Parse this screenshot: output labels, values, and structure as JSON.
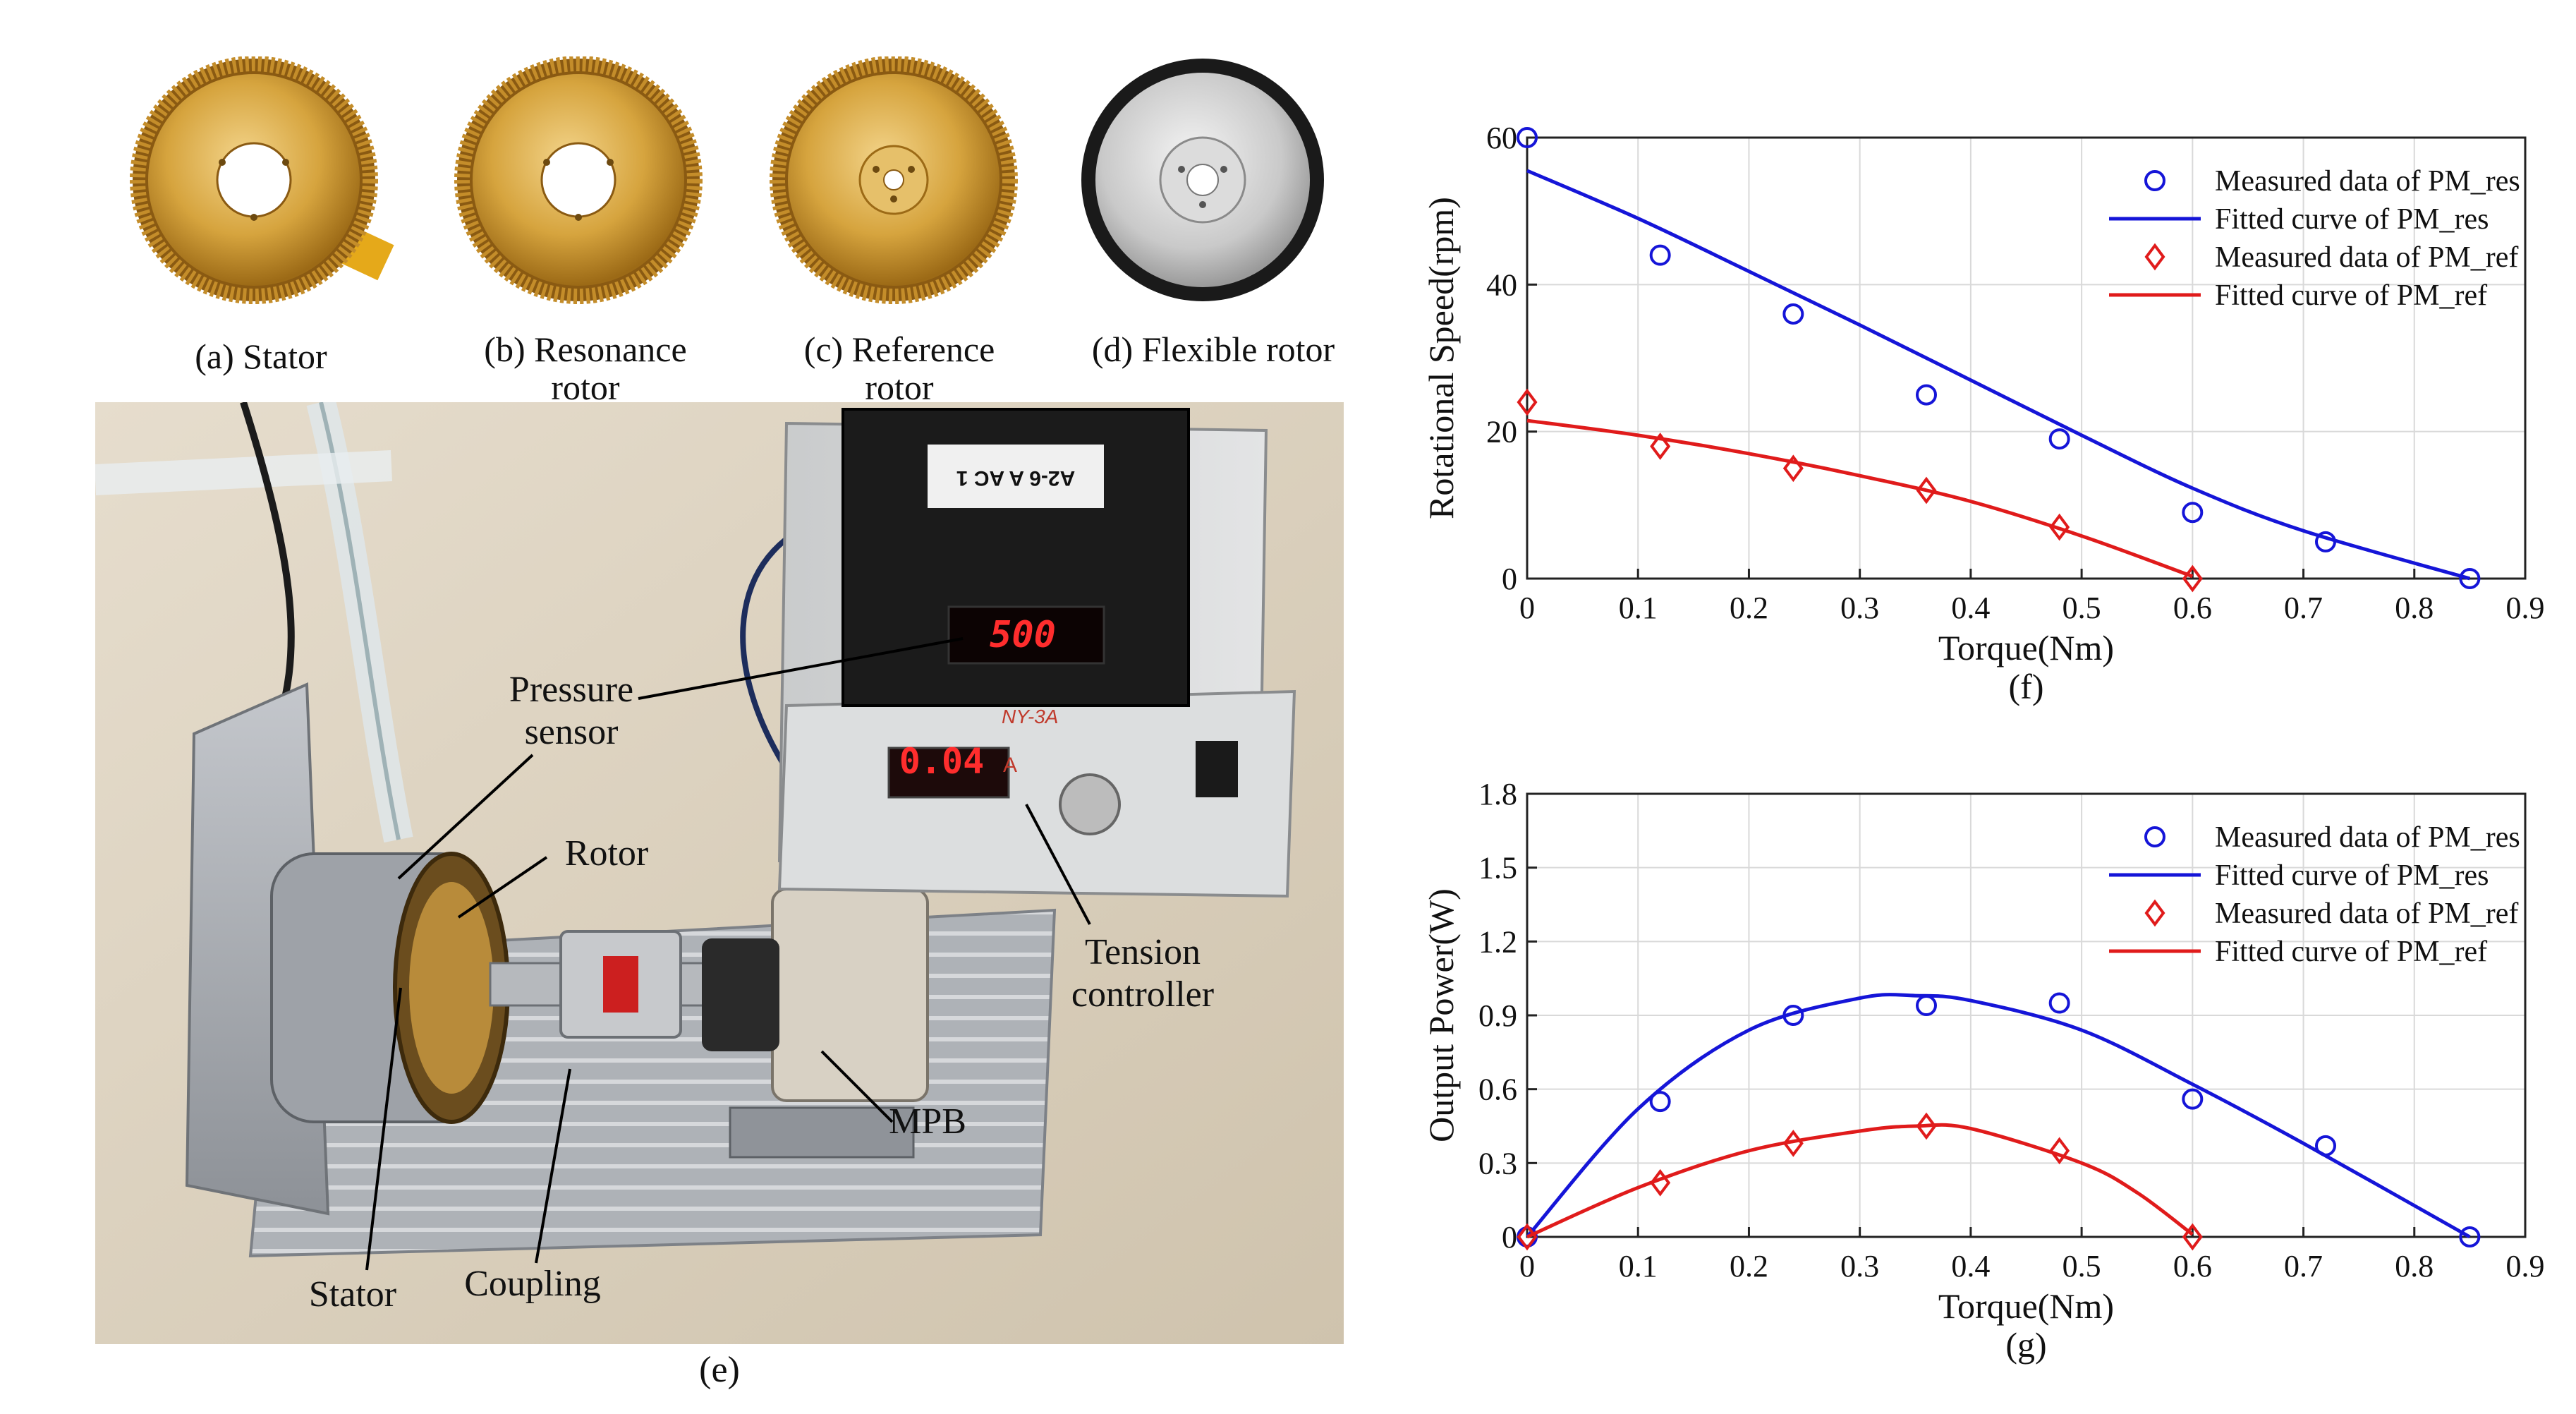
{
  "parts": [
    {
      "caption": "(a) Stator"
    },
    {
      "caption": "(b) Resonance rotor"
    },
    {
      "caption": "(c) Reference rotor"
    },
    {
      "caption": "(d) Flexible rotor"
    }
  ],
  "setup": {
    "caption": "(e)",
    "labels": {
      "pressure_sensor": "Pressure sensor",
      "rotor": "Rotor",
      "stator": "Stator",
      "coupling": "Coupling",
      "mpb": "MPB",
      "tension_controller": "Tension controller"
    },
    "displays": {
      "meter_top": "500",
      "meter_bottom": "0.04",
      "meter_unit": "A",
      "meter_sticker": "A2-6 A AC 1",
      "controller_brand": "NY-3A"
    }
  },
  "chart_data": [
    {
      "id": "f",
      "type": "line",
      "caption": "(f)",
      "xlabel": "Torque(Nm)",
      "ylabel": "Rotational Speed(rpm)",
      "xlim": [
        0,
        0.9
      ],
      "ylim": [
        0,
        60
      ],
      "xticks": [
        "0",
        "0.1",
        "0.2",
        "0.3",
        "0.4",
        "0.5",
        "0.6",
        "0.7",
        "0.8",
        "0.9"
      ],
      "yticks": [
        "0",
        "20",
        "40",
        "60"
      ],
      "grid": true,
      "legend_position": "top-right",
      "series": [
        {
          "name": "Measured data of PM_res",
          "kind": "marker",
          "marker": "circle",
          "color": "#1515d8",
          "x": [
            0,
            0.12,
            0.24,
            0.36,
            0.48,
            0.6,
            0.72,
            0.85
          ],
          "y": [
            60,
            44,
            36,
            25,
            19,
            9,
            5,
            0
          ]
        },
        {
          "name": "Fitted curve of PM_res",
          "kind": "line",
          "color": "#1515d8",
          "x": [
            0,
            0.1,
            0.2,
            0.3,
            0.4,
            0.5,
            0.6,
            0.7,
            0.85
          ],
          "y": [
            55.5,
            49,
            41.8,
            34.5,
            27,
            19.5,
            12.3,
            6.5,
            0
          ]
        },
        {
          "name": "Measured data of PM_ref",
          "kind": "marker",
          "marker": "diamond",
          "color": "#e01b1b",
          "x": [
            0,
            0.12,
            0.24,
            0.36,
            0.48,
            0.6
          ],
          "y": [
            24,
            18,
            15,
            12,
            7,
            0
          ]
        },
        {
          "name": "Fitted curve of PM_ref",
          "kind": "line",
          "color": "#e01b1b",
          "x": [
            0,
            0.1,
            0.2,
            0.3,
            0.4,
            0.5,
            0.6
          ],
          "y": [
            21.5,
            19.5,
            17,
            14,
            10.5,
            5.8,
            0.3
          ]
        }
      ]
    },
    {
      "id": "g",
      "type": "line",
      "caption": "(g)",
      "xlabel": "Torque(Nm)",
      "ylabel": "Output Power(W)",
      "xlim": [
        0,
        0.9
      ],
      "ylim": [
        0,
        1.8
      ],
      "xticks": [
        "0",
        "0.1",
        "0.2",
        "0.3",
        "0.4",
        "0.5",
        "0.6",
        "0.7",
        "0.8",
        "0.9"
      ],
      "yticks": [
        "0",
        "0.3",
        "0.6",
        "0.9",
        "1.2",
        "1.5",
        "1.8"
      ],
      "grid": true,
      "legend_position": "top-right",
      "series": [
        {
          "name": "Measured data of PM_res",
          "kind": "marker",
          "marker": "circle",
          "color": "#1515d8",
          "x": [
            0,
            0.12,
            0.24,
            0.36,
            0.48,
            0.6,
            0.72,
            0.85
          ],
          "y": [
            0,
            0.55,
            0.9,
            0.94,
            0.95,
            0.56,
            0.37,
            0
          ]
        },
        {
          "name": "Fitted curve of PM_res",
          "kind": "line",
          "color": "#1515d8",
          "x": [
            0,
            0.1,
            0.2,
            0.3,
            0.35,
            0.4,
            0.5,
            0.6,
            0.7,
            0.85
          ],
          "y": [
            0,
            0.52,
            0.84,
            0.97,
            0.98,
            0.96,
            0.84,
            0.62,
            0.38,
            0
          ]
        },
        {
          "name": "Measured data of PM_ref",
          "kind": "marker",
          "marker": "diamond",
          "color": "#e01b1b",
          "x": [
            0,
            0.12,
            0.24,
            0.36,
            0.48,
            0.6
          ],
          "y": [
            0,
            0.22,
            0.38,
            0.45,
            0.35,
            0
          ]
        },
        {
          "name": "Fitted curve of PM_ref",
          "kind": "line",
          "color": "#e01b1b",
          "x": [
            0,
            0.1,
            0.2,
            0.3,
            0.35,
            0.4,
            0.5,
            0.55,
            0.6
          ],
          "y": [
            0,
            0.2,
            0.35,
            0.43,
            0.45,
            0.44,
            0.3,
            0.18,
            0.01
          ]
        }
      ]
    }
  ]
}
